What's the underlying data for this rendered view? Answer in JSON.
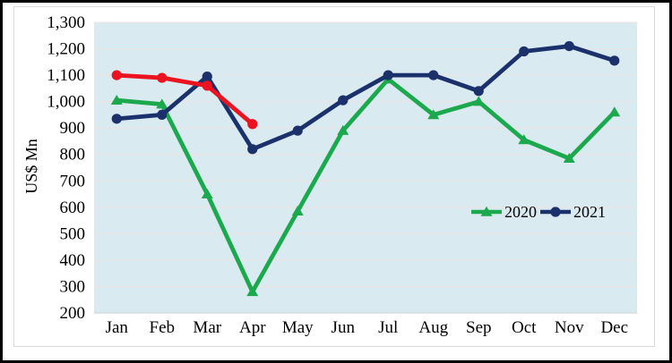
{
  "chart_data": {
    "type": "line",
    "ylabel": "US$ Mn",
    "ylim": [
      200,
      1300
    ],
    "ytick_step": 100,
    "grid": true,
    "legend_position": "inside-right",
    "plot_bg_color": "#daeaf1",
    "gridline_color": "#ece2e0",
    "frame_border_color": "#d9d9d9",
    "text_color": "#000000",
    "categories": [
      "Jan",
      "Feb",
      "Mar",
      "Apr",
      "May",
      "Jun",
      "Jul",
      "Aug",
      "Sep",
      "Oct",
      "Nov",
      "Dec"
    ],
    "series": [
      {
        "id": "2020",
        "name": "2020",
        "color": "#1ca94e",
        "marker": "triangle",
        "in_legend": true,
        "values": [
          1005,
          990,
          650,
          280,
          585,
          890,
          1085,
          950,
          1000,
          855,
          785,
          960
        ]
      },
      {
        "id": "2021",
        "name": "2021",
        "color": "#1a316b",
        "marker": "circle",
        "in_legend": true,
        "values": [
          935,
          950,
          1095,
          820,
          890,
          1005,
          1100,
          1100,
          1040,
          1190,
          1210,
          1155
        ]
      },
      {
        "id": "red",
        "name": "",
        "color": "#ec1320",
        "marker": "circle",
        "in_legend": false,
        "values": [
          1100,
          1090,
          1060,
          915
        ]
      }
    ]
  }
}
